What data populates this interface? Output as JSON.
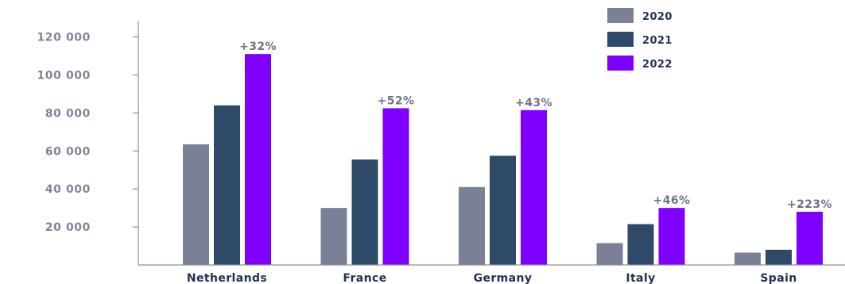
{
  "chart_data": {
    "type": "bar",
    "title": "",
    "xlabel": "",
    "ylabel": "",
    "ylim": [
      0,
      130000
    ],
    "yticks": [
      {
        "value": 20000,
        "label": "20 000"
      },
      {
        "value": 40000,
        "label": "40 000"
      },
      {
        "value": 60000,
        "label": "60 000"
      },
      {
        "value": 80000,
        "label": "80 000"
      },
      {
        "value": 100000,
        "label": "100 000"
      },
      {
        "value": 120000,
        "label": "120 000"
      }
    ],
    "grid": false,
    "legend_position": "top-right",
    "categories": [
      "Netherlands",
      "France",
      "Germany",
      "Italy",
      "Spain"
    ],
    "series": [
      {
        "name": "2020",
        "color": "#7a8196",
        "values": [
          63500,
          30000,
          41000,
          11500,
          6500
        ]
      },
      {
        "name": "2021",
        "color": "#2e4a68",
        "values": [
          84000,
          55500,
          57500,
          21500,
          8000
        ]
      },
      {
        "name": "2022",
        "color": "#7f00ff",
        "values": [
          111000,
          82500,
          81500,
          30000,
          28000
        ]
      }
    ],
    "annotations": [
      "+32%",
      "+52%",
      "+43%",
      "+46%",
      "+223%"
    ]
  }
}
